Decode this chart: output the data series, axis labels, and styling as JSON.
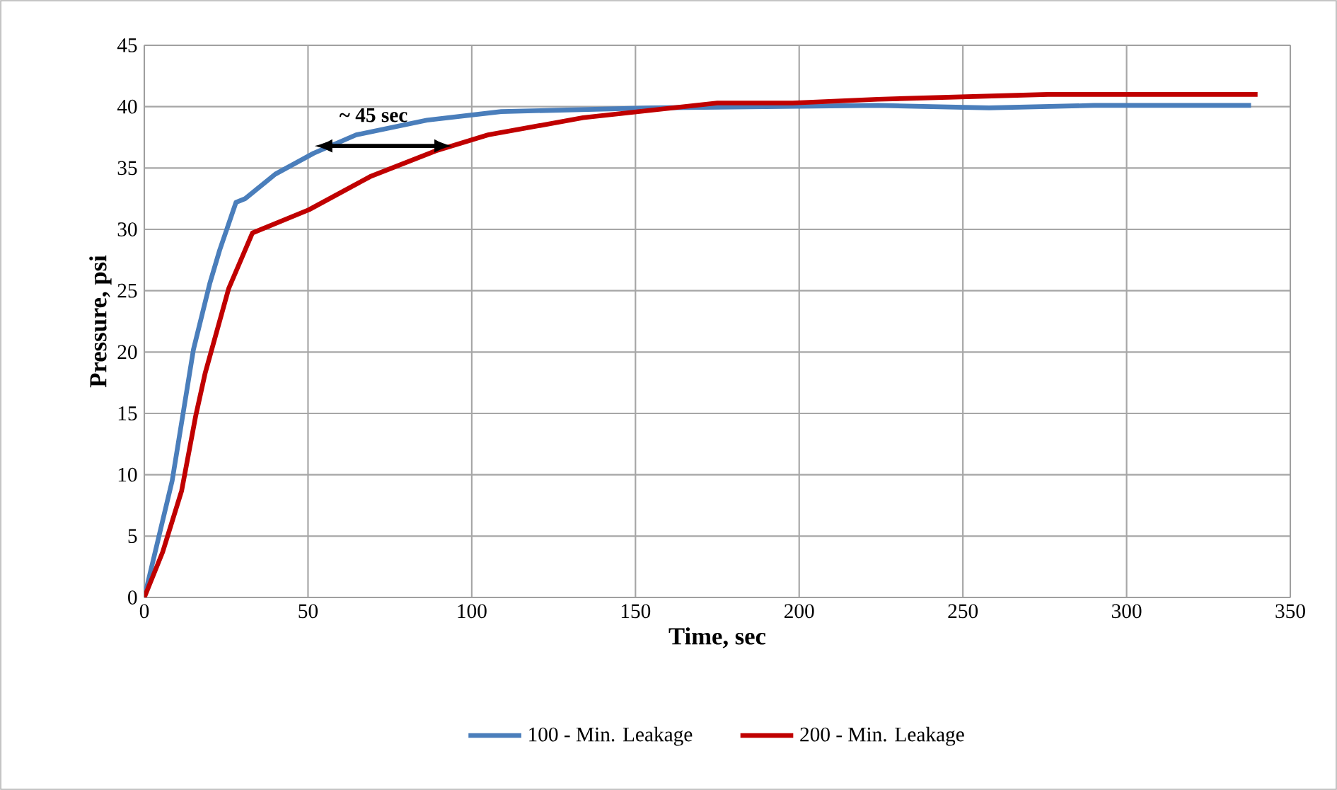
{
  "chart_data": {
    "type": "line",
    "xlabel": "Time, sec",
    "ylabel": "Pressure, psi",
    "annotations": [
      {
        "text": "~ 45 sec",
        "x": 70,
        "y": 38.2
      }
    ],
    "xlim": [
      0,
      350
    ],
    "xticks": [
      0,
      50,
      100,
      150,
      200,
      250,
      300,
      350
    ],
    "ylim": [
      0,
      45
    ],
    "yticks": [
      0,
      5,
      10,
      15,
      20,
      25,
      30,
      35,
      40,
      45
    ],
    "grid": true,
    "legend": "bottom",
    "marker": "none",
    "line_style": "solid",
    "series": [
      {
        "name": "100 - Min. Leakage",
        "color": "#4a7ebb",
        "x": [
          0,
          8.5,
          15,
          20,
          23,
          28,
          30.8,
          40,
          51.7,
          64.7,
          86.3,
          109,
          155,
          224,
          258,
          290,
          338
        ],
        "values": [
          0,
          9.5,
          20.2,
          25.6,
          28.3,
          32.2,
          32.5,
          34.5,
          36.2,
          37.7,
          38.9,
          39.6,
          39.9,
          40.1,
          39.9,
          40.1,
          40.1
        ]
      },
      {
        "name": "200 - Min. Leakage",
        "color": "#c00000",
        "x": [
          0,
          5.6,
          11.4,
          15.7,
          18.6,
          25.8,
          33,
          50.3,
          69,
          89,
          105,
          134,
          175,
          198,
          224,
          276,
          340
        ],
        "values": [
          0,
          3.7,
          8.7,
          14.8,
          18.3,
          25.2,
          29.7,
          31.6,
          34.3,
          36.4,
          37.7,
          39.1,
          40.3,
          40.3,
          40.6,
          41,
          41
        ]
      }
    ]
  }
}
